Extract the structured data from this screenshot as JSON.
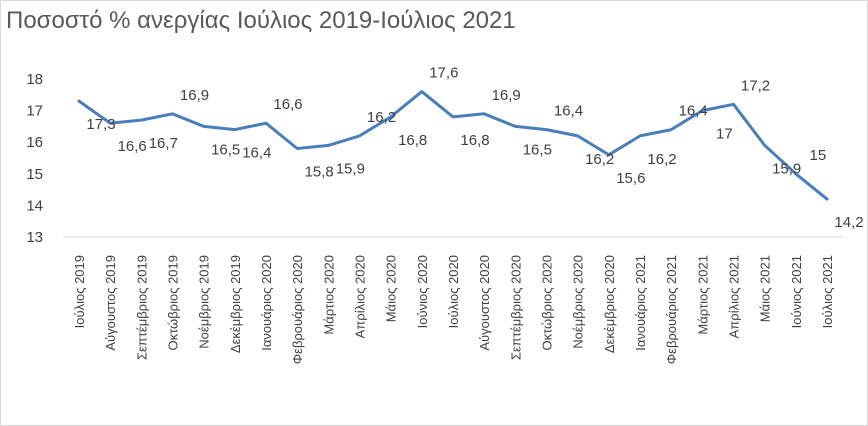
{
  "chart_data": {
    "type": "line",
    "title": "Ποσοστό % ανεργίας Ιούλιος 2019-Ιούλιος 2021",
    "xlabel": "",
    "ylabel": "",
    "ylim": [
      13,
      18
    ],
    "yticks": [
      "13",
      "14",
      "15",
      "16",
      "17",
      "18"
    ],
    "grid": false,
    "legend": "none",
    "colors": {
      "line": "#4a7ebb",
      "text": "#404040",
      "title": "#595959",
      "axis": "#d9d9d9"
    },
    "categories": [
      "Ιούλιος 2019",
      "Αύγουστος 2019",
      "Σεπτέμβριος 2019",
      "Οκτώβριος 2019",
      "Νοέμβριος 2019",
      "Δεκέμβριος 2019",
      "Ιανουάριος 2020",
      "Φεβρουάριος 2020",
      "Μάρτιος 2020",
      "Απρίλιος 2020",
      "Μάιος 2020",
      "Ιούνιος 2020",
      "Ιούλιος 2020",
      "Αύγουστος 2020",
      "Σεπτέμβριος 2020",
      "Οκτώβριος 2020",
      "Νοέμβριος 2020",
      "Δεκέμβριος 2020",
      "Ιανουάριος 2021",
      "Φεβρουάριος 2021",
      "Μάρτιος 2021",
      "Απρίλιος 2021",
      "Μάιος 2021",
      "Ιούνιος 2021",
      "Ιούλιος 2021"
    ],
    "series": [
      {
        "values": [
          17.3,
          16.6,
          16.7,
          16.9,
          16.5,
          16.4,
          16.6,
          15.8,
          15.9,
          16.2,
          16.8,
          17.6,
          16.8,
          16.9,
          16.5,
          16.4,
          16.2,
          15.6,
          16.2,
          16.4,
          17.0,
          17.2,
          15.9,
          15.0,
          14.2
        ],
        "data_labels": [
          "17,3",
          "16,6",
          "16,7",
          "16,9",
          "16,5",
          "16,4",
          "16,6",
          "15,8",
          "15,9",
          "16,2",
          "16,8",
          "17,6",
          "16,8",
          "16,9",
          "16,5",
          "16,4",
          "16,2",
          "15,6",
          "16,2",
          "16,4",
          "17",
          "17,2",
          "15,9",
          "15",
          "14,2"
        ]
      }
    ]
  }
}
